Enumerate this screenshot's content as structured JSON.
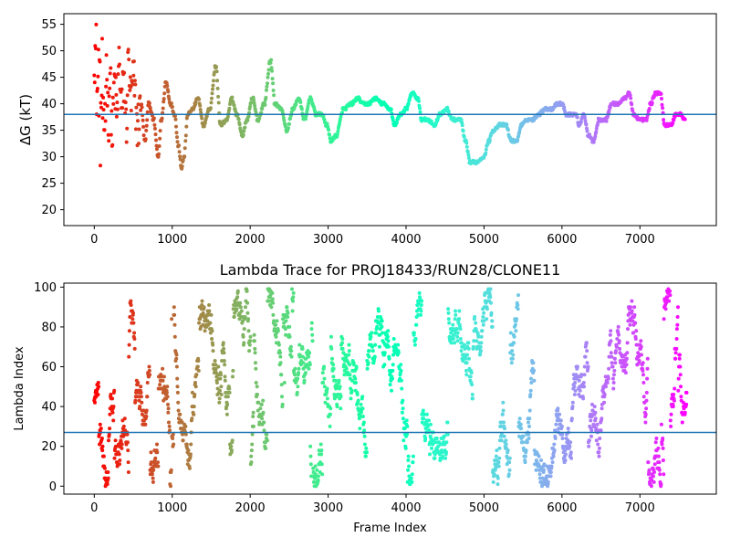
{
  "chart_data": [
    {
      "type": "scatter",
      "title": "",
      "xlabel": "",
      "ylabel": "ΔG (kT)",
      "xlim": [
        -390,
        7980
      ],
      "ylim": [
        17,
        57
      ],
      "xticks": [
        0,
        1000,
        2000,
        3000,
        4000,
        5000,
        6000,
        7000
      ],
      "yticks": [
        20,
        25,
        30,
        35,
        40,
        45,
        50,
        55
      ],
      "hline": 38,
      "hline_color": "#1f77b4",
      "colormap": "rainbow (red at frame 0 → violet at last frame)",
      "trace_waypoints": [
        [
          0,
          54
        ],
        [
          20,
          48
        ],
        [
          40,
          42
        ],
        [
          60,
          46
        ],
        [
          80,
          36
        ],
        [
          100,
          44
        ],
        [
          120,
          30
        ],
        [
          140,
          40
        ],
        [
          160,
          48
        ],
        [
          180,
          36
        ],
        [
          200,
          45
        ],
        [
          230,
          34
        ],
        [
          260,
          44
        ],
        [
          290,
          38
        ],
        [
          320,
          48
        ],
        [
          350,
          39
        ],
        [
          380,
          44
        ],
        [
          410,
          36
        ],
        [
          440,
          48
        ],
        [
          470,
          40
        ],
        [
          500,
          44
        ],
        [
          560,
          36
        ],
        [
          600,
          40
        ],
        [
          650,
          33
        ],
        [
          700,
          40
        ],
        [
          760,
          37
        ],
        [
          820,
          30
        ],
        [
          860,
          37
        ],
        [
          920,
          44
        ],
        [
          980,
          40
        ],
        [
          1030,
          38
        ],
        [
          1080,
          32
        ],
        [
          1120,
          28
        ],
        [
          1150,
          30
        ],
        [
          1200,
          38
        ],
        [
          1260,
          39
        ],
        [
          1330,
          41
        ],
        [
          1400,
          36
        ],
        [
          1480,
          39
        ],
        [
          1560,
          47
        ],
        [
          1620,
          36
        ],
        [
          1700,
          37
        ],
        [
          1760,
          41
        ],
        [
          1830,
          38
        ],
        [
          1900,
          34
        ],
        [
          1960,
          37
        ],
        [
          2030,
          41
        ],
        [
          2100,
          37
        ],
        [
          2180,
          40
        ],
        [
          2260,
          48
        ],
        [
          2320,
          40
        ],
        [
          2400,
          39
        ],
        [
          2470,
          35
        ],
        [
          2550,
          39
        ],
        [
          2620,
          41
        ],
        [
          2700,
          37
        ],
        [
          2770,
          41
        ],
        [
          2850,
          38
        ],
        [
          2920,
          38
        ],
        [
          2980,
          36
        ],
        [
          3040,
          33
        ],
        [
          3100,
          34
        ],
        [
          3200,
          39
        ],
        [
          3300,
          40
        ],
        [
          3380,
          41
        ],
        [
          3450,
          40
        ],
        [
          3520,
          40
        ],
        [
          3600,
          41
        ],
        [
          3700,
          40
        ],
        [
          3800,
          39
        ],
        [
          3850,
          36
        ],
        [
          3930,
          38
        ],
        [
          4000,
          39
        ],
        [
          4080,
          42
        ],
        [
          4150,
          41
        ],
        [
          4200,
          37
        ],
        [
          4280,
          37
        ],
        [
          4360,
          36
        ],
        [
          4440,
          38
        ],
        [
          4520,
          39
        ],
        [
          4600,
          37
        ],
        [
          4700,
          37
        ],
        [
          4760,
          33
        ],
        [
          4820,
          29
        ],
        [
          4900,
          29
        ],
        [
          5000,
          30
        ],
        [
          5060,
          33
        ],
        [
          5120,
          35
        ],
        [
          5200,
          36
        ],
        [
          5280,
          36
        ],
        [
          5350,
          33
        ],
        [
          5420,
          33
        ],
        [
          5480,
          36
        ],
        [
          5560,
          37
        ],
        [
          5620,
          37
        ],
        [
          5700,
          38
        ],
        [
          5780,
          39
        ],
        [
          5860,
          39
        ],
        [
          5940,
          40
        ],
        [
          6000,
          40
        ],
        [
          6060,
          38
        ],
        [
          6120,
          38
        ],
        [
          6180,
          38
        ],
        [
          6220,
          36
        ],
        [
          6280,
          38
        ],
        [
          6340,
          34
        ],
        [
          6400,
          33
        ],
        [
          6480,
          37
        ],
        [
          6560,
          37
        ],
        [
          6640,
          40
        ],
        [
          6720,
          40
        ],
        [
          6800,
          41
        ],
        [
          6860,
          42
        ],
        [
          6920,
          38
        ],
        [
          7000,
          37
        ],
        [
          7080,
          37
        ],
        [
          7140,
          40
        ],
        [
          7200,
          42
        ],
        [
          7260,
          42
        ],
        [
          7320,
          36
        ],
        [
          7400,
          36
        ],
        [
          7460,
          38
        ],
        [
          7520,
          38
        ],
        [
          7580,
          37
        ]
      ]
    },
    {
      "type": "scatter",
      "title": "Lambda Trace for PROJ18433/RUN28/CLONE11",
      "xlabel": "Frame Index",
      "ylabel": "Lambda Index",
      "xlim": [
        -390,
        7980
      ],
      "ylim": [
        -4,
        102
      ],
      "xticks": [
        0,
        1000,
        2000,
        3000,
        4000,
        5000,
        6000,
        7000
      ],
      "yticks": [
        0,
        20,
        40,
        60,
        80,
        100
      ],
      "hline": 27,
      "hline_color": "#1f77b4",
      "colormap": "rainbow (red at frame 0 → violet at last frame)",
      "frame_range": [
        0,
        7600
      ],
      "lambda_range": [
        0,
        99
      ]
    }
  ]
}
